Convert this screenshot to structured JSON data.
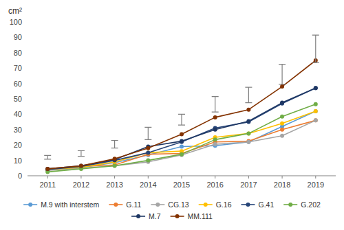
{
  "chart_data": {
    "type": "line",
    "ylabel": "cm²",
    "x": [
      2011,
      2012,
      2013,
      2014,
      2015,
      2016,
      2017,
      2018,
      2019
    ],
    "xlim": [
      2010.4,
      2019.6
    ],
    "xticks": [
      2011,
      2012,
      2013,
      2014,
      2015,
      2016,
      2017,
      2018,
      2019
    ],
    "ylim": [
      0,
      100
    ],
    "yticks": [
      0,
      10,
      20,
      30,
      40,
      50,
      60,
      70,
      80,
      90,
      100
    ],
    "grid": false,
    "legend": "bottom",
    "marker": "circle",
    "series": [
      {
        "name": "M.9 with interstem",
        "color": "#5B9BD5",
        "values": [
          4.0,
          5.5,
          8.5,
          13.5,
          19.0,
          19.5,
          22.0,
          32.0,
          42.0
        ]
      },
      {
        "name": "G.11",
        "color": "#ED7D31",
        "values": [
          4.0,
          6.0,
          7.0,
          14.0,
          14.5,
          22.0,
          22.5,
          30.0,
          36.0
        ]
      },
      {
        "name": "CG.13",
        "color": "#A5A5A5",
        "values": [
          3.5,
          5.0,
          6.5,
          9.0,
          13.5,
          20.5,
          22.0,
          26.0,
          36.0
        ]
      },
      {
        "name": "G.16",
        "color": "#FFC000",
        "values": [
          4.0,
          5.5,
          9.0,
          15.0,
          16.0,
          25.0,
          27.5,
          34.0,
          42.0
        ]
      },
      {
        "name": "G.41",
        "color": "#264478",
        "values": [
          4.0,
          6.0,
          10.0,
          15.0,
          22.0,
          31.0,
          35.0,
          47.0,
          57.0
        ]
      },
      {
        "name": "G.202",
        "color": "#70AD47",
        "values": [
          2.5,
          4.5,
          6.5,
          10.0,
          14.0,
          23.5,
          27.5,
          38.5,
          46.5
        ]
      },
      {
        "name": "M.7",
        "color": "#1F3864",
        "values": [
          4.5,
          6.5,
          10.5,
          19.0,
          22.5,
          30.0,
          35.5,
          47.5,
          57.0
        ]
      },
      {
        "name": "MM.111",
        "color": "#833200",
        "values": [
          4.5,
          6.5,
          11.0,
          18.0,
          27.0,
          38.0,
          43.0,
          58.0,
          75.0
        ]
      }
    ],
    "error_bars": {
      "color": "#808080",
      "values": [
        12.0,
        14.5,
        20.5,
        27.5,
        36.5,
        46.5,
        52.5,
        66.0,
        82.5
      ],
      "errors": [
        1.2,
        1.8,
        2.5,
        4.0,
        3.5,
        5.0,
        5.0,
        6.5,
        9.0
      ]
    }
  }
}
